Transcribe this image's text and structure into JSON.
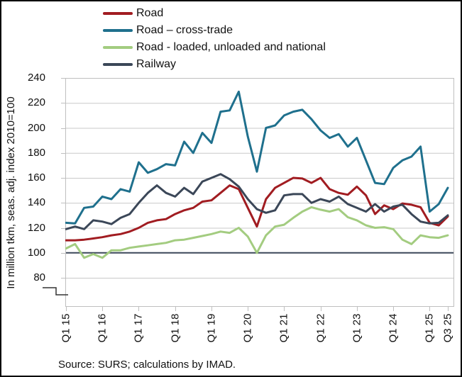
{
  "source_note": "Source: SURS; calculations by IMAD.",
  "chart_data": {
    "type": "line",
    "title": "",
    "xlabel": "",
    "ylabel": "In million tkm, seas. adj. index 2010=100",
    "ylim": [
      80,
      240
    ],
    "yticks": [
      240,
      220,
      200,
      180,
      160,
      140,
      120,
      100,
      80
    ],
    "grid": true,
    "gridline_color": "#c9c9c9",
    "plot_border_color": "#bfbfbf",
    "reference_line": {
      "value": 100,
      "color": "#3e4a5c"
    },
    "axis_break": true,
    "legend_position": "top-left",
    "x": [
      "Q1 15",
      "Q2 15",
      "Q3 15",
      "Q4 15",
      "Q1 16",
      "Q2 16",
      "Q3 16",
      "Q4 16",
      "Q1 17",
      "Q2 17",
      "Q3 17",
      "Q4 17",
      "Q1 18",
      "Q2 18",
      "Q3 18",
      "Q4 18",
      "Q1 19",
      "Q2 19",
      "Q3 19",
      "Q4 19",
      "Q1 20",
      "Q2 20",
      "Q3 20",
      "Q4 20",
      "Q1 21",
      "Q2 21",
      "Q3 21",
      "Q4 21",
      "Q1 22",
      "Q2 22",
      "Q3 22",
      "Q4 22",
      "Q1 23",
      "Q2 23",
      "Q3 23",
      "Q4 23",
      "Q1 24",
      "Q2 24",
      "Q3 24",
      "Q4 24",
      "Q1 25",
      "Q2 25",
      "Q3 25"
    ],
    "xtick_labels": [
      "Q1 15",
      "Q1 16",
      "Q1 17",
      "Q1 18",
      "Q1 19",
      "Q1 20",
      "Q1 21",
      "Q1 22",
      "Q1 23",
      "Q1 24",
      "Q1 25",
      "Q3 25"
    ],
    "xtick_indices": [
      0,
      4,
      8,
      12,
      16,
      20,
      24,
      28,
      32,
      36,
      40,
      42
    ],
    "series": [
      {
        "name": "Road",
        "color": "#a11c21",
        "values": [
          110,
          110,
          110.5,
          111.5,
          112.5,
          114,
          115,
          117,
          120,
          124,
          126,
          127,
          131,
          134,
          136,
          141,
          142,
          148,
          154,
          151,
          136,
          121,
          143,
          152,
          156,
          160,
          159.5,
          156,
          160,
          151,
          148,
          146.5,
          153,
          146,
          131,
          138,
          135,
          139.5,
          138.5,
          136.5,
          124,
          122,
          129
        ]
      },
      {
        "name": "Road – cross-trade",
        "color": "#1f708d",
        "values": [
          124,
          123.5,
          136,
          137,
          145,
          143,
          151,
          149,
          172.5,
          164,
          167,
          171,
          170,
          189,
          180,
          196,
          188,
          213,
          214,
          229,
          193,
          165,
          200,
          202,
          210,
          213,
          214.5,
          207,
          198,
          192,
          195,
          185,
          192,
          174,
          156,
          155,
          168,
          174,
          177,
          185,
          133,
          139,
          152
        ]
      },
      {
        "name": "Road - loaded, unloaded and national",
        "color": "#a3cc80",
        "values": [
          103.5,
          107,
          96,
          99,
          96,
          102,
          102,
          104,
          105,
          106,
          107,
          108,
          110,
          110.5,
          112,
          113.5,
          115,
          117,
          116,
          120,
          113,
          100,
          114,
          121,
          122.5,
          128,
          133,
          136.5,
          134.5,
          133,
          135,
          128.5,
          126,
          122,
          120,
          120.5,
          119,
          110.5,
          107,
          114,
          112.5,
          112,
          114
        ]
      },
      {
        "name": "Railway",
        "color": "#3b4758",
        "values": [
          119,
          121,
          119,
          126,
          125,
          123,
          128,
          131,
          140,
          148,
          154,
          148,
          145,
          152,
          147,
          157,
          160,
          163,
          159,
          153,
          143,
          135,
          132,
          134,
          146,
          147,
          147,
          140,
          143,
          141,
          145,
          139,
          136,
          133,
          139,
          133,
          137,
          138.5,
          131,
          125,
          123.5,
          124,
          130
        ]
      }
    ]
  }
}
